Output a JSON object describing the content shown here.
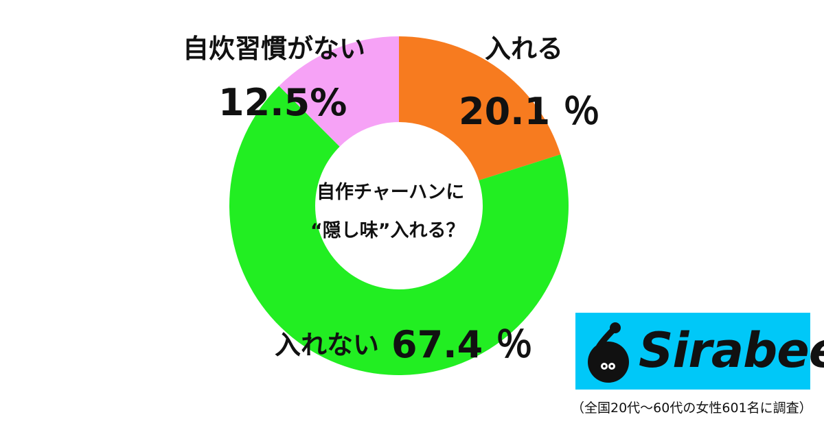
{
  "chart_data": {
    "type": "pie",
    "donut": true,
    "center_text": [
      "自作チャーハンに",
      "“隠し味”入れる？"
    ],
    "slices": [
      {
        "label": "入れる",
        "value": 20.1,
        "display": "20.1 ％",
        "color": "#f77b1f"
      },
      {
        "label": "入れない",
        "value": 67.4,
        "display": "67.4 ％",
        "color": "#22ee22"
      },
      {
        "label": "自炊習慣がない",
        "value": 12.5,
        "display": "12.5%",
        "color": "#f6a2f6"
      }
    ]
  },
  "logo": {
    "text": "Sirabee",
    "color": "#00c8f8"
  },
  "note": "（全国20代〜60代の女性601名に調査）"
}
